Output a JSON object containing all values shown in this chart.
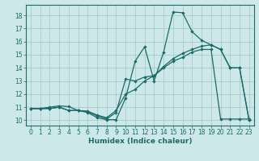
{
  "xlabel": "Humidex (Indice chaleur)",
  "bg_color": "#cde8e8",
  "grid_color": "#aacccc",
  "line_color": "#1a6b6b",
  "xlim": [
    -0.5,
    23.5
  ],
  "ylim": [
    9.6,
    18.8
  ],
  "yticks": [
    10,
    11,
    12,
    13,
    14,
    15,
    16,
    17,
    18
  ],
  "xticks": [
    0,
    1,
    2,
    3,
    4,
    5,
    6,
    7,
    8,
    9,
    10,
    11,
    12,
    13,
    14,
    15,
    16,
    17,
    18,
    19,
    20,
    21,
    22,
    23
  ],
  "line1_x": [
    0,
    1,
    2,
    3,
    4,
    5,
    6,
    7,
    8,
    9,
    10,
    11,
    12,
    13,
    14,
    15,
    16,
    17,
    18,
    19,
    20,
    21,
    22,
    23
  ],
  "line1_y": [
    10.9,
    10.9,
    10.9,
    11.0,
    10.75,
    10.75,
    10.6,
    10.2,
    10.05,
    10.05,
    11.7,
    14.5,
    15.6,
    13.0,
    15.2,
    18.25,
    18.2,
    16.75,
    16.1,
    15.75,
    15.4,
    14.0,
    14.0,
    10.0
  ],
  "line2_x": [
    0,
    1,
    2,
    3,
    4,
    5,
    6,
    7,
    8,
    9,
    10,
    11,
    12,
    13,
    14,
    15,
    16,
    17,
    18,
    19,
    20,
    21,
    22,
    23
  ],
  "line2_y": [
    10.9,
    10.9,
    11.0,
    11.1,
    11.05,
    10.75,
    10.7,
    10.4,
    10.2,
    10.75,
    12.0,
    12.35,
    13.0,
    13.4,
    14.1,
    14.7,
    15.1,
    15.4,
    15.65,
    15.75,
    15.4,
    14.0,
    14.0,
    10.0
  ],
  "line3_x": [
    0,
    1,
    2,
    3,
    4,
    5,
    6,
    7,
    8,
    9,
    10,
    11,
    12,
    13,
    14,
    15,
    16,
    17,
    18,
    19,
    20,
    21,
    22,
    23
  ],
  "line3_y": [
    10.9,
    10.9,
    10.9,
    11.0,
    10.75,
    10.75,
    10.65,
    10.35,
    10.1,
    10.6,
    13.15,
    13.0,
    13.3,
    13.4,
    14.0,
    14.5,
    14.8,
    15.2,
    15.4,
    15.4,
    10.1,
    10.1,
    10.1,
    10.1
  ]
}
